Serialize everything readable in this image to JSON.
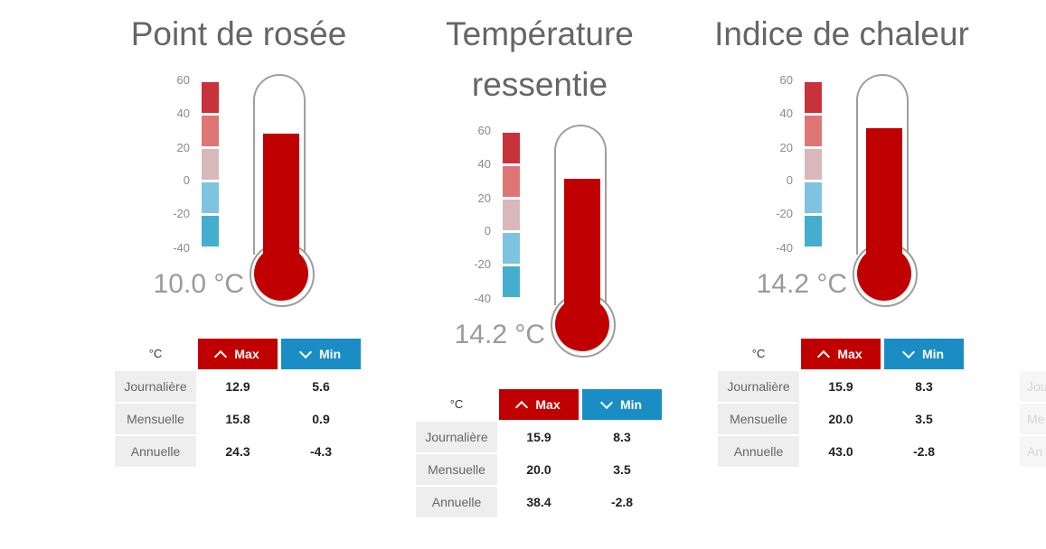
{
  "panels": [
    {
      "title_lines": [
        "Point de rosée"
      ],
      "scale_labels": [
        "60",
        "40",
        "20",
        "0",
        "-20",
        "-40"
      ],
      "reading": "10.0 °C",
      "fill_fraction": 0.72,
      "table": {
        "unit": "°C",
        "max_label": "Max",
        "min_label": "Min",
        "rows": [
          {
            "label": "Journalière",
            "max": "12.9",
            "min": "5.6"
          },
          {
            "label": "Mensuelle",
            "max": "15.8",
            "min": "0.9"
          },
          {
            "label": "Annuelle",
            "max": "24.3",
            "min": "-4.3"
          }
        ]
      }
    },
    {
      "title_lines": [
        "Température",
        "ressentie"
      ],
      "scale_labels": [
        "60",
        "40",
        "20",
        "0",
        "-20",
        "-40"
      ],
      "reading": "14.2 °C",
      "fill_fraction": 0.75,
      "table": {
        "unit": "°C",
        "max_label": "Max",
        "min_label": "Min",
        "rows": [
          {
            "label": "Journalière",
            "max": "15.9",
            "min": "8.3"
          },
          {
            "label": "Mensuelle",
            "max": "20.0",
            "min": "3.5"
          },
          {
            "label": "Annuelle",
            "max": "38.4",
            "min": "-2.8"
          }
        ]
      }
    },
    {
      "title_lines": [
        "Indice de chaleur"
      ],
      "scale_labels": [
        "60",
        "40",
        "20",
        "0",
        "-20",
        "-40"
      ],
      "reading": "14.2 °C",
      "fill_fraction": 0.75,
      "table": {
        "unit": "°C",
        "max_label": "Max",
        "min_label": "Min",
        "rows": [
          {
            "label": "Journalière",
            "max": "15.9",
            "min": "8.3"
          },
          {
            "label": "Mensuelle",
            "max": "20.0",
            "min": "3.5"
          },
          {
            "label": "Annuelle",
            "max": "43.0",
            "min": "-2.8"
          }
        ]
      }
    }
  ],
  "ghost_rows": [
    "Jou",
    "Me",
    "An"
  ],
  "colors": {
    "scale": [
      "#c8323a",
      "#de7676",
      "#d9b8bc",
      "#7ec3df",
      "#45aecf"
    ],
    "mercury": "#c00000",
    "max_button": "#c00000",
    "min_button": "#1a8dc4"
  }
}
